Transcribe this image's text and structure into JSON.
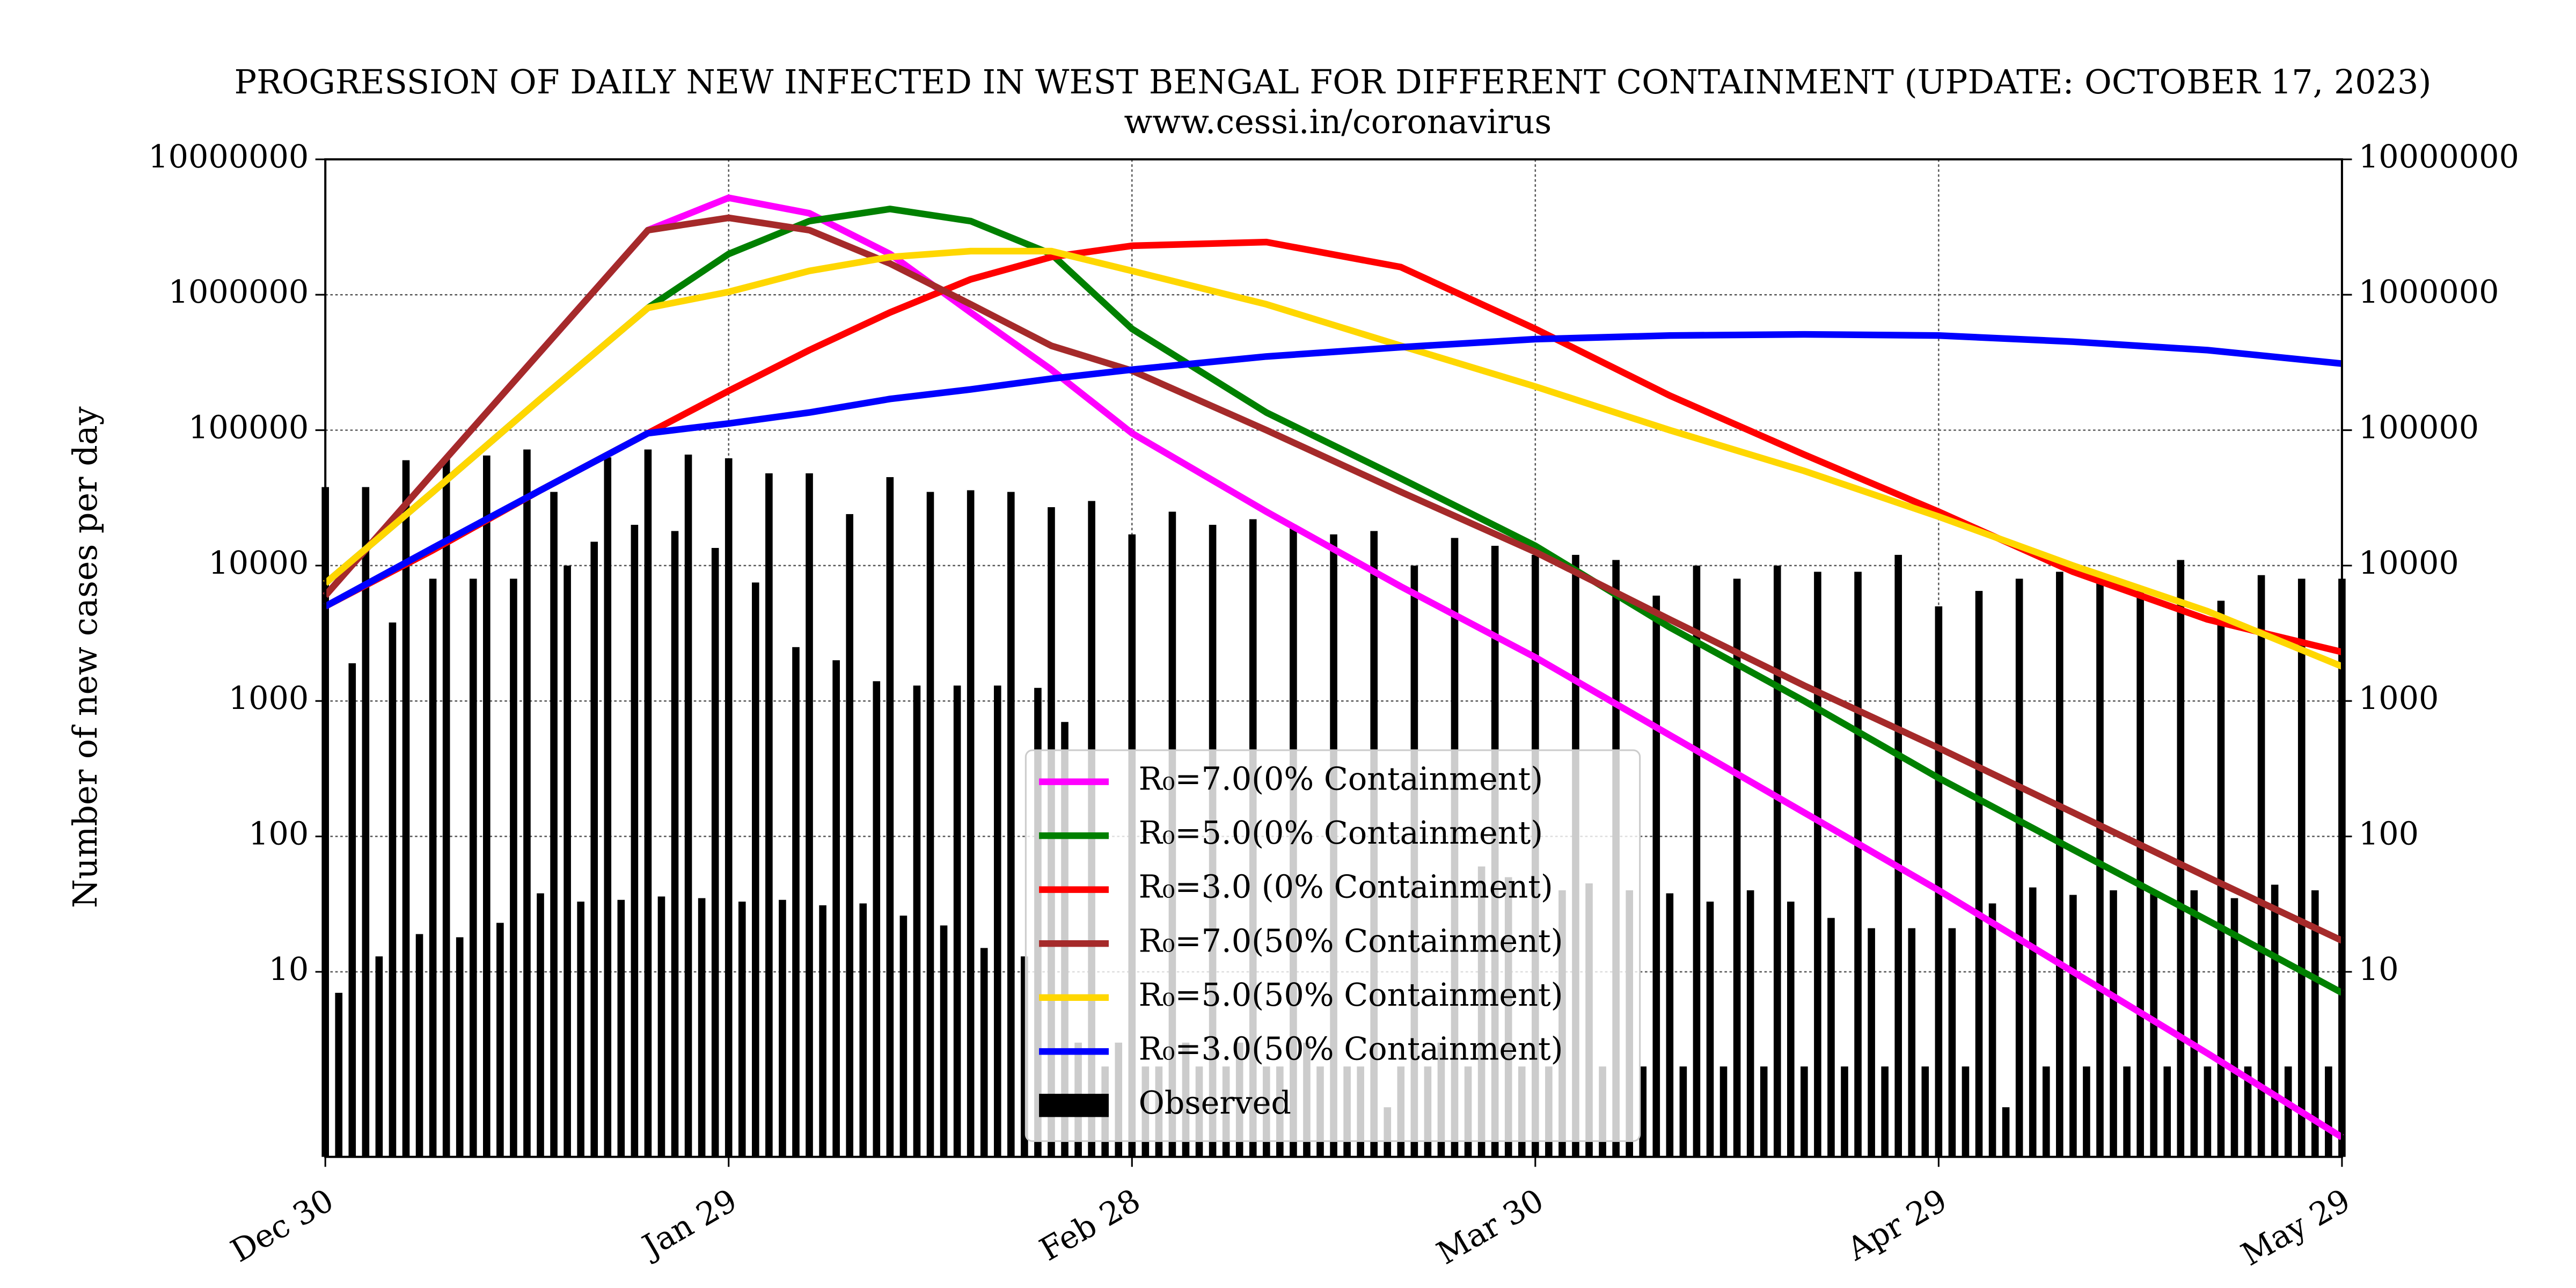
{
  "chart_data": {
    "type": "line",
    "title": "PROGRESSION OF DAILY NEW INFECTED IN WEST BENGAL FOR DIFFERENT CONTAINMENT (UPDATE: OCTOBER 17, 2023)",
    "subtitle": "www.cessi.in/coronavirus",
    "ylabel": "Number of new cases per day",
    "log_y": true,
    "grid": true,
    "legend": "lower center",
    "xlim": [
      0,
      150
    ],
    "xticks": [
      {
        "value": 0,
        "label": "Dec 30"
      },
      {
        "value": 30,
        "label": "Jan 29"
      },
      {
        "value": 60,
        "label": "Feb 28"
      },
      {
        "value": 90,
        "label": "Mar 30"
      },
      {
        "value": 120,
        "label": "Apr 29"
      },
      {
        "value": 150,
        "label": "May 29"
      }
    ],
    "ylim": [
      0.43,
      10000000
    ],
    "yticks": [
      10,
      100,
      1000,
      10000,
      100000,
      1000000,
      10000000
    ],
    "x": [
      0,
      8,
      16,
      24,
      30,
      36,
      42,
      48,
      54,
      60,
      70,
      80,
      90,
      100,
      110,
      120,
      130,
      140,
      150
    ],
    "series": [
      {
        "name": "R₀=7.0(0% Containment)",
        "color": "#ff00ff",
        "values": [
          6000,
          48000,
          380000,
          3000000,
          5200000,
          4000000,
          2000000,
          740000,
          280000,
          95000,
          25000,
          7000,
          2100,
          560,
          150,
          40,
          10,
          2.5,
          0.6
        ]
      },
      {
        "name": "R₀=5.0(0% Containment)",
        "color": "#008000",
        "values": [
          7400,
          35000,
          170000,
          800000,
          2000000,
          3500000,
          4300000,
          3500000,
          2000000,
          560000,
          135000,
          44000,
          14000,
          3500,
          1000,
          270,
          80,
          24,
          7
        ]
      },
      {
        "name": "R₀=3.0 (0% Containment)",
        "color": "#ff0000",
        "values": [
          5000,
          13000,
          36000,
          95000,
          195000,
          390000,
          740000,
          1300000,
          1900000,
          2300000,
          2450000,
          1600000,
          560000,
          180000,
          66000,
          25000,
          9000,
          4000,
          2300
        ]
      },
      {
        "name": "R₀=7.0(50% Containment)",
        "color": "#a52a2a",
        "values": [
          6000,
          48000,
          380000,
          3000000,
          3700000,
          3000000,
          1700000,
          850000,
          420000,
          275000,
          100000,
          35000,
          12600,
          4000,
          1300,
          450,
          150,
          50,
          17
        ]
      },
      {
        "name": "R₀=5.0(50% Containment)",
        "color": "#ffd700",
        "values": [
          7400,
          35000,
          170000,
          800000,
          1050000,
          1500000,
          1900000,
          2100000,
          2100000,
          1500000,
          850000,
          420000,
          210000,
          100000,
          50000,
          23000,
          10000,
          4600,
          1800
        ]
      },
      {
        "name": "R₀=3.0(50% Containment)",
        "color": "#0000ff",
        "values": [
          5000,
          13500,
          36000,
          95000,
          112000,
          135000,
          170000,
          200000,
          240000,
          280000,
          350000,
          410000,
          470000,
          500000,
          510000,
          500000,
          450000,
          390000,
          310000
        ]
      }
    ],
    "observed": {
      "name": "Observed",
      "color": "#000000",
      "x": [
        0,
        1,
        2,
        3,
        4,
        5,
        6,
        7,
        8,
        9,
        10,
        11,
        12,
        13,
        14,
        15,
        16,
        17,
        18,
        19,
        20,
        21,
        22,
        23,
        24,
        25,
        26,
        27,
        28,
        29,
        30,
        31,
        32,
        33,
        34,
        35,
        36,
        37,
        38,
        39,
        40,
        41,
        42,
        43,
        44,
        45,
        46,
        47,
        48,
        49,
        50,
        51,
        52,
        53,
        54,
        55,
        56,
        57,
        58,
        59,
        60,
        61,
        62,
        63,
        64,
        65,
        66,
        67,
        68,
        69,
        70,
        71,
        72,
        73,
        74,
        75,
        76,
        77,
        78,
        79,
        80,
        81,
        82,
        83,
        84,
        85,
        86,
        87,
        88,
        89,
        90,
        91,
        92,
        93,
        94,
        95,
        96,
        97,
        98,
        99,
        100,
        101,
        102,
        103,
        104,
        105,
        106,
        107,
        108,
        109,
        110,
        111,
        112,
        113,
        114,
        115,
        116,
        117,
        118,
        119,
        120,
        121,
        122,
        123,
        124,
        125,
        126,
        127,
        128,
        129,
        130,
        131,
        132,
        133,
        134,
        135,
        136,
        137,
        138,
        139,
        140,
        141,
        142,
        143,
        144,
        145,
        146,
        147,
        148,
        149,
        150
      ],
      "values": [
        38000,
        7,
        1900,
        38000,
        13,
        3800,
        60000,
        19,
        8000,
        63000,
        18,
        8000,
        65000,
        23,
        8000,
        72000,
        38,
        35000,
        10000,
        33,
        15000,
        63000,
        34,
        20000,
        72000,
        36,
        18000,
        66000,
        35,
        13500,
        62000,
        33,
        7500,
        48000,
        34,
        2500,
        48000,
        31,
        2000,
        24000,
        32,
        1400,
        45000,
        26,
        1300,
        35000,
        22,
        1300,
        36000,
        15,
        1300,
        35000,
        13,
        1250,
        27000,
        700,
        3,
        30000,
        2,
        3,
        17000,
        2,
        2,
        25000,
        3,
        2,
        20000,
        2,
        3,
        22000,
        2,
        2,
        20000,
        3,
        2,
        17000,
        2,
        2,
        18000,
        1,
        2,
        10000,
        2,
        3,
        16000,
        2,
        60,
        14000,
        50,
        2,
        12000,
        2,
        40,
        12000,
        45,
        2,
        11000,
        40,
        2,
        6000,
        38,
        2,
        10000,
        33,
        2,
        8000,
        40,
        2,
        10000,
        33,
        2,
        9000,
        25,
        2,
        9000,
        21,
        2,
        12000,
        21,
        2,
        5000,
        21,
        2,
        6500,
        32,
        1,
        8000,
        42,
        2,
        9000,
        37,
        2,
        8500,
        40,
        2,
        6500,
        38,
        2,
        11000,
        40,
        2,
        5500,
        35,
        2,
        8500,
        44,
        2,
        8000,
        40,
        2,
        8000
      ]
    }
  }
}
